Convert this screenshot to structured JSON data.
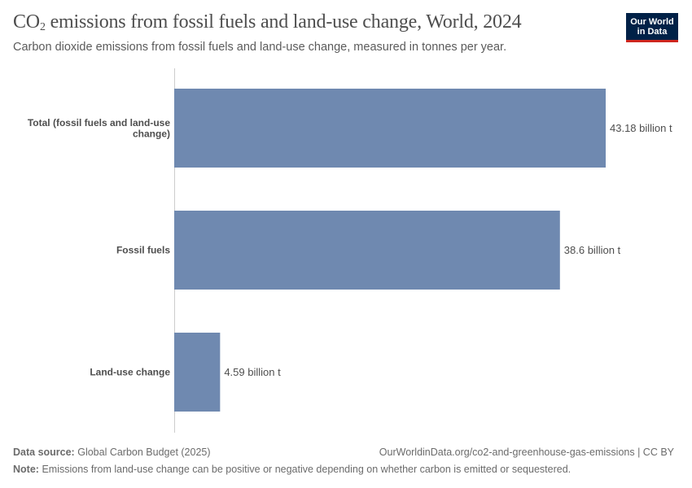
{
  "header": {
    "title_prefix": "CO",
    "title_sub": "2",
    "title_suffix": " emissions from fossil fuels and land-use change, World, 2024",
    "subtitle": "Carbon dioxide emissions from fossil fuels and land-use change, measured in tonnes per year."
  },
  "logo": {
    "line1": "Our World",
    "line2": "in Data",
    "bg_color": "#002147",
    "accent_color": "#ce261e"
  },
  "chart_data": {
    "type": "bar",
    "orientation": "horizontal",
    "categories": [
      "Total (fossil fuels and land-use change)",
      "Fossil fuels",
      "Land-use change"
    ],
    "values": [
      43.18,
      38.6,
      4.59
    ],
    "unit": "billion t",
    "value_labels": [
      "43.18 billion t",
      "38.6 billion t",
      "4.59 billion t"
    ],
    "bar_color": "#6f89b0",
    "grid": false,
    "xlim": [
      0,
      43.18
    ]
  },
  "footer": {
    "source_label": "Data source:",
    "source_text": "Global Carbon Budget (2025)",
    "url_text": "OurWorldinData.org/co2-and-greenhouse-gas-emissions | CC BY",
    "note_label": "Note:",
    "note_text": "Emissions from land-use change can be positive or negative depending on whether carbon is emitted or sequestered."
  }
}
